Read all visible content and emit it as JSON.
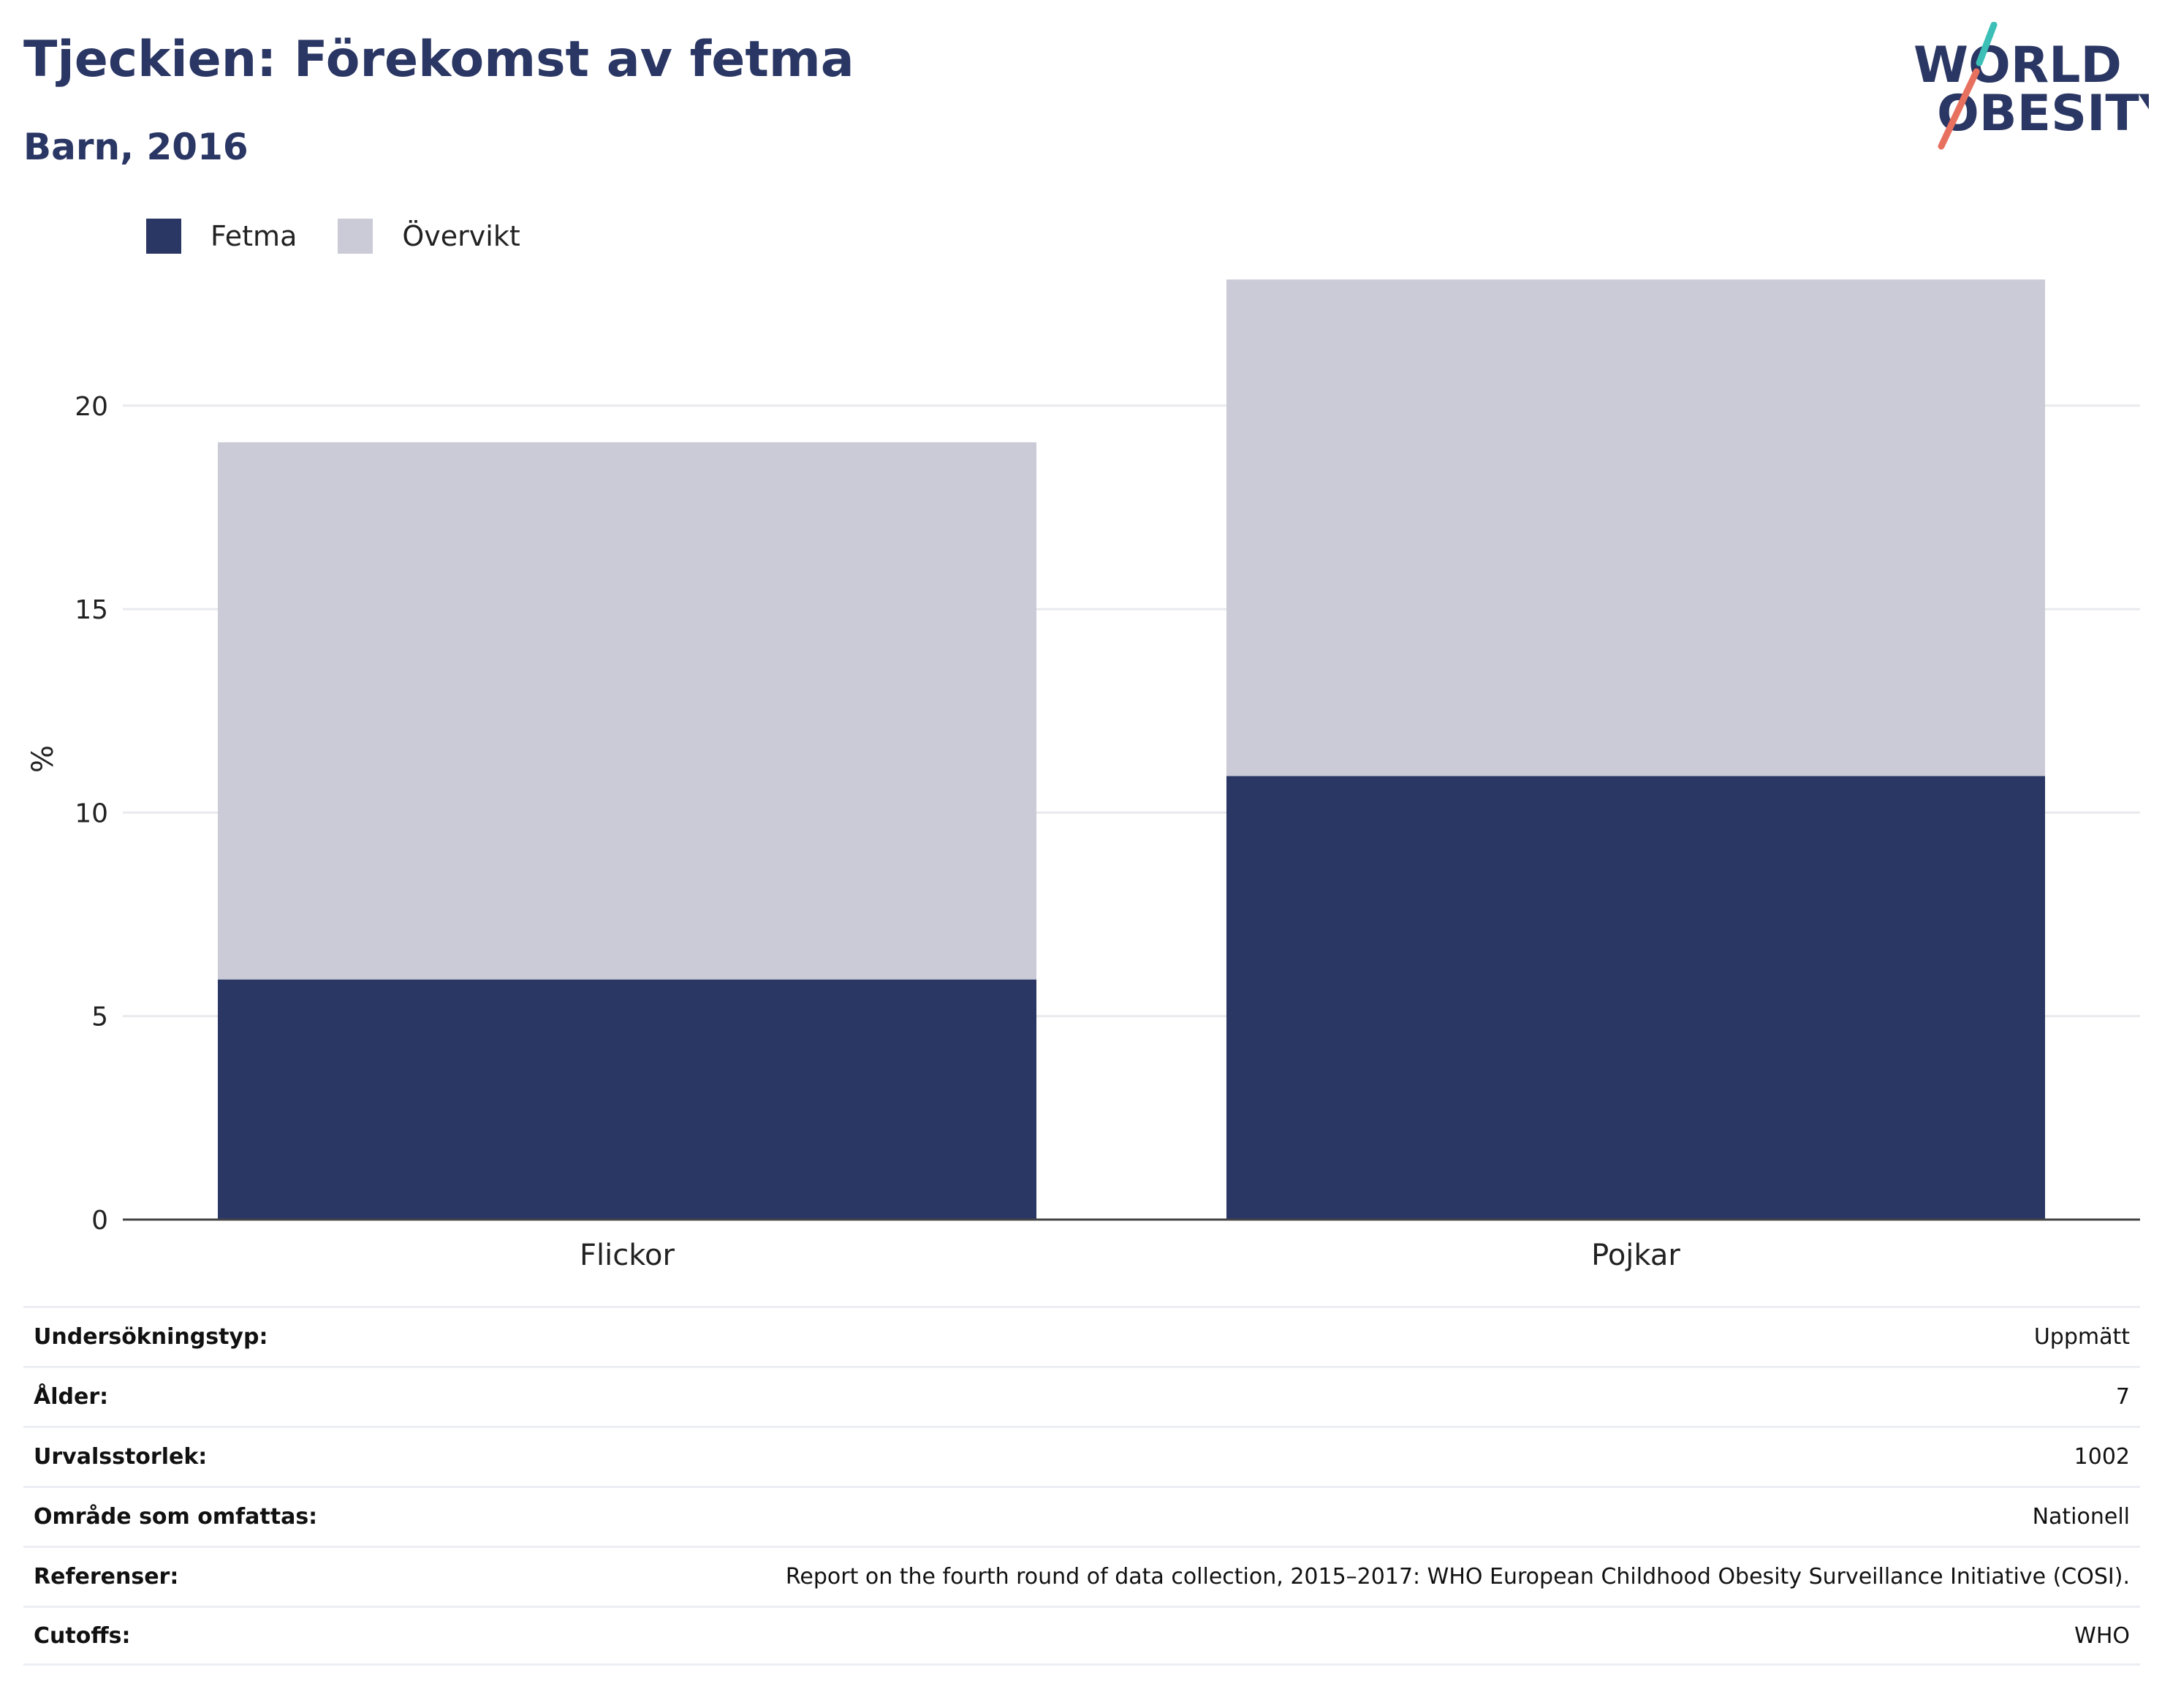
{
  "header": {
    "title": "Tjeckien: Förekomst av fetma",
    "subtitle": "Barn, 2016"
  },
  "logo": {
    "line1": "WORLD",
    "line2": "OBESITY",
    "colors": {
      "text": "#2a3663",
      "teal": "#3bbfb6",
      "coral": "#e8705f"
    }
  },
  "colors": {
    "fetma": "#2a3663",
    "overvikt": "#cacbd7",
    "grid": "#e9eaee",
    "axis": "#444444"
  },
  "chart_data": {
    "type": "bar",
    "stacked": true,
    "categories": [
      "Flickor",
      "Pojkar"
    ],
    "series": [
      {
        "name": "Fetma",
        "values": [
          5.9,
          10.9
        ]
      },
      {
        "name": "Övervikt",
        "values": [
          13.2,
          12.2
        ]
      }
    ],
    "ylabel": "%",
    "ylim": [
      0,
      23.5
    ],
    "yticks": [
      0,
      5,
      10,
      15,
      20
    ],
    "grid": true,
    "legend_position": "top-left"
  },
  "info": [
    {
      "label": "Undersökningstyp:",
      "value": "Uppmätt"
    },
    {
      "label": "Ålder:",
      "value": "7"
    },
    {
      "label": "Urvalsstorlek:",
      "value": "1002"
    },
    {
      "label": "Område som omfattas:",
      "value": "Nationell"
    },
    {
      "label": "Referenser:",
      "value": "Report on the fourth round of data collection, 2015–2017: WHO European Childhood Obesity Surveillance Initiative (COSI)."
    },
    {
      "label": "Cutoffs:",
      "value": "WHO"
    }
  ]
}
